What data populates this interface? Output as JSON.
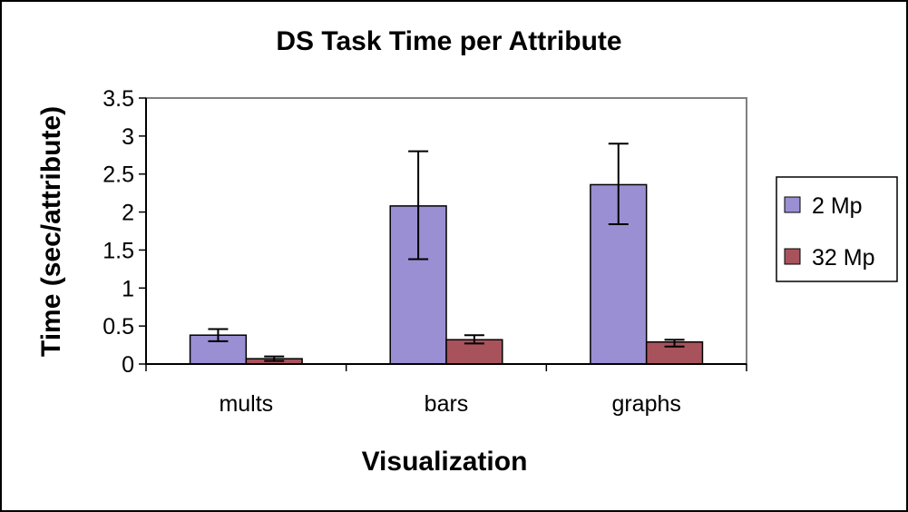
{
  "chart_data": {
    "type": "bar",
    "title": "DS Task Time per Attribute",
    "xlabel": "Visualization",
    "ylabel": "Time (sec/attribute)",
    "categories": [
      "mults",
      "bars",
      "graphs"
    ],
    "ylim": [
      0,
      3.5
    ],
    "yticks": [
      {
        "value": 0,
        "label": "0"
      },
      {
        "value": 0.5,
        "label": "0.5"
      },
      {
        "value": 1,
        "label": "1"
      },
      {
        "value": 1.5,
        "label": "1.5"
      },
      {
        "value": 2,
        "label": "2"
      },
      {
        "value": 2.5,
        "label": "2.5"
      },
      {
        "value": 3,
        "label": "3"
      },
      {
        "value": 3.5,
        "label": "3.5"
      }
    ],
    "grid": false,
    "legend_position": "right",
    "series": [
      {
        "name": "2 Mp",
        "color": "#9a8fd3",
        "values": [
          0.38,
          2.08,
          2.36
        ],
        "error_low": [
          0.3,
          1.38,
          1.84
        ],
        "error_high": [
          0.46,
          2.8,
          2.9
        ]
      },
      {
        "name": "32 Mp",
        "color": "#a8535c",
        "values": [
          0.07,
          0.32,
          0.29
        ],
        "error_low": [
          0.04,
          0.27,
          0.23
        ],
        "error_high": [
          0.1,
          0.38,
          0.32
        ]
      }
    ]
  }
}
